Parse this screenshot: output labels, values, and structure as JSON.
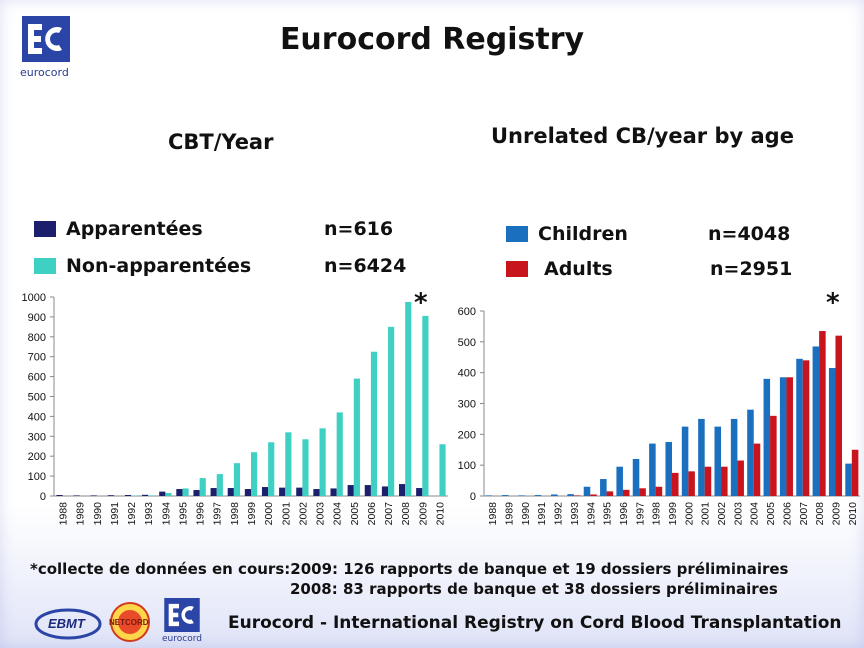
{
  "header": {
    "title": "Eurocord Registry",
    "logo_text": "eurocord"
  },
  "left_chart": {
    "subtitle": "CBT/Year",
    "legend": [
      {
        "label": "Apparentées",
        "n": "n=616",
        "color": "#1c1f6b"
      },
      {
        "label": "Non-apparentées",
        "n": "n=6424",
        "color": "#3fd0c4"
      }
    ],
    "star": "*"
  },
  "right_chart": {
    "subtitle": "Unrelated CB/year by age",
    "legend": [
      {
        "label": "Children",
        "n": "n=4048",
        "color": "#1a6fbf"
      },
      {
        "label": "Adults",
        "n": "n=2951",
        "color": "#c8141c"
      }
    ],
    "star": "*"
  },
  "chart_data": [
    {
      "type": "bar",
      "categories": [
        "1988",
        "1989",
        "1990",
        "1991",
        "1992",
        "1993",
        "1994",
        "1995",
        "1996",
        "1997",
        "1998",
        "1999",
        "2000",
        "2001",
        "2002",
        "2003",
        "2004",
        "2005",
        "2006",
        "2007",
        "2008",
        "2009",
        "2010"
      ],
      "series": [
        {
          "name": "Apparentées",
          "values": [
            5,
            3,
            3,
            4,
            5,
            6,
            22,
            35,
            30,
            40,
            40,
            35,
            45,
            42,
            42,
            35,
            38,
            55,
            55,
            48,
            60,
            40,
            0
          ]
        },
        {
          "name": "Non-apparentées",
          "values": [
            0,
            0,
            0,
            0,
            2,
            3,
            15,
            38,
            90,
            110,
            165,
            220,
            270,
            320,
            285,
            340,
            420,
            590,
            725,
            850,
            975,
            905,
            260
          ]
        }
      ],
      "ylim": [
        0,
        1000
      ],
      "yticks": [
        0,
        100,
        200,
        300,
        400,
        500,
        600,
        700,
        800,
        900,
        1000
      ],
      "grid": false
    },
    {
      "type": "bar",
      "categories": [
        "1988",
        "1989",
        "1990",
        "1991",
        "1992",
        "1993",
        "1994",
        "1995",
        "1996",
        "1997",
        "1998",
        "1999",
        "2000",
        "2001",
        "2002",
        "2003",
        "2004",
        "2005",
        "2006",
        "2007",
        "2008",
        "2009",
        "2010"
      ],
      "series": [
        {
          "name": "Children",
          "values": [
            2,
            3,
            2,
            3,
            5,
            6,
            30,
            55,
            95,
            120,
            170,
            175,
            225,
            250,
            225,
            250,
            280,
            380,
            385,
            445,
            485,
            415,
            105
          ]
        },
        {
          "name": "Adults",
          "values": [
            0,
            0,
            0,
            0,
            0,
            2,
            5,
            15,
            20,
            25,
            30,
            75,
            80,
            95,
            95,
            115,
            170,
            260,
            385,
            440,
            535,
            520,
            150
          ]
        }
      ],
      "ylim": [
        0,
        600
      ],
      "yticks": [
        0,
        100,
        200,
        300,
        400,
        500,
        600
      ],
      "grid": false
    }
  ],
  "notes": {
    "line1": "*collecte de données en cours:2009: 126 rapports de banque et 19 dossiers préliminaires",
    "line2": "2008:   83 rapports de banque et 38 dossiers préliminaires"
  },
  "footer": {
    "text": "Eurocord - International Registry on Cord Blood Transplantation",
    "logo1_text": "EBMT",
    "logo2_text": "NETCORD",
    "logo3_text": "eurocord"
  }
}
